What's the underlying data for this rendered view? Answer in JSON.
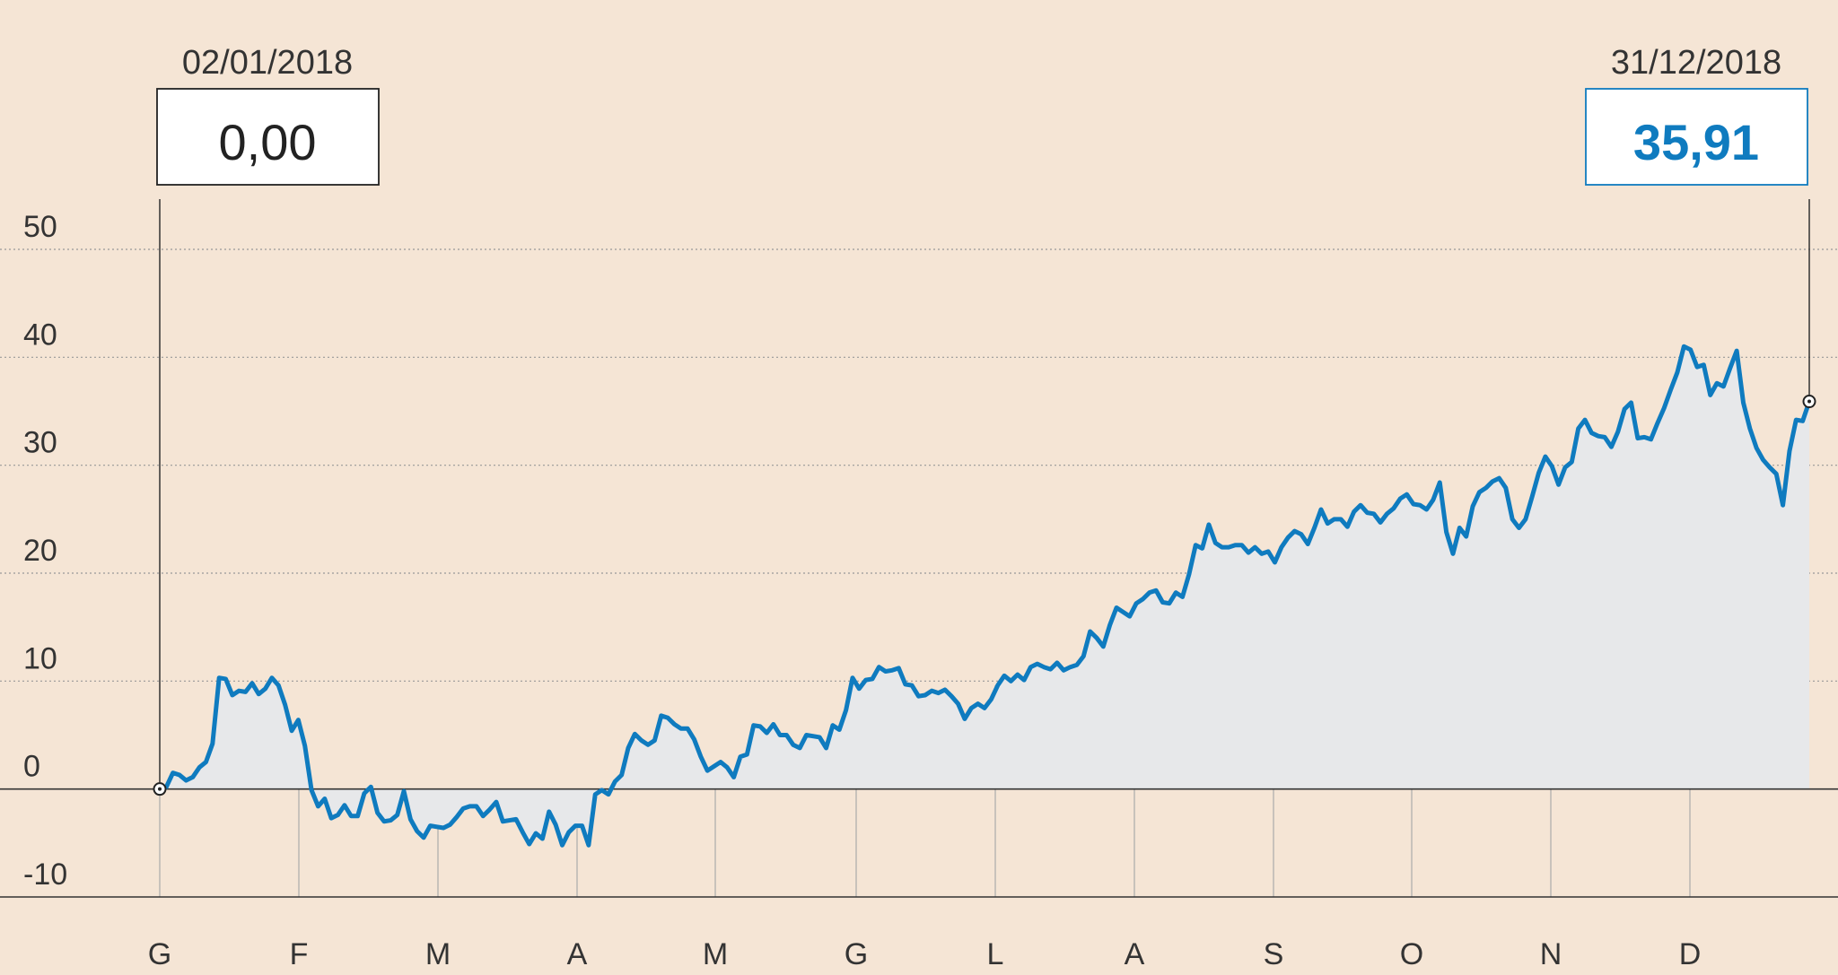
{
  "chart_data": {
    "type": "area",
    "x_labels": [
      "G",
      "F",
      "M",
      "A",
      "M",
      "G",
      "L",
      "A",
      "S",
      "O",
      "N",
      "D"
    ],
    "yticks": [
      50,
      40,
      30,
      20,
      10,
      0,
      -10
    ],
    "ylim": [
      -10,
      50
    ],
    "grid": true,
    "series": [
      {
        "values": [
          0.0,
          0.2,
          1.5,
          1.3,
          0.8,
          1.1,
          2.0,
          2.5,
          4.2,
          10.3,
          10.2,
          8.7,
          9.1,
          9.0,
          9.8,
          8.8,
          9.3,
          10.3,
          9.6,
          7.8,
          5.4,
          6.4,
          4.0,
          -0.1,
          -1.6,
          -0.9,
          -2.7,
          -2.4,
          -1.5,
          -2.5,
          -2.5,
          -0.4,
          0.2,
          -2.2,
          -3.0,
          -2.9,
          -2.4,
          -0.2,
          -2.8,
          -3.9,
          -4.5,
          -3.4,
          -3.5,
          -3.6,
          -3.3,
          -2.6,
          -1.8,
          -1.6,
          -1.6,
          -2.5,
          -1.9,
          -1.2,
          -3.0,
          -2.9,
          -2.8,
          -4.0,
          -5.1,
          -4.1,
          -4.6,
          -2.1,
          -3.3,
          -5.2,
          -4.0,
          -3.4,
          -3.4,
          -5.2,
          -0.5,
          -0.1,
          -0.5,
          0.7,
          1.3,
          3.8,
          5.1,
          4.5,
          4.1,
          4.5,
          6.8,
          6.6,
          6.0,
          5.6,
          5.6,
          4.6,
          3.0,
          1.7,
          2.1,
          2.5,
          2.0,
          1.1,
          3.0,
          3.2,
          5.9,
          5.8,
          5.2,
          6.0,
          5.0,
          5.0,
          4.1,
          3.8,
          5.0,
          4.9,
          4.8,
          3.8,
          5.9,
          5.5,
          7.3,
          10.3,
          9.3,
          10.1,
          10.2,
          11.3,
          10.9,
          11.0,
          11.2,
          9.7,
          9.6,
          8.6,
          8.7,
          9.1,
          8.9,
          9.2,
          8.6,
          7.9,
          6.5,
          7.5,
          7.9,
          7.5,
          8.3,
          9.6,
          10.5,
          10.0,
          10.6,
          10.1,
          11.3,
          11.6,
          11.3,
          11.1,
          11.7,
          11.0,
          11.3,
          11.5,
          12.3,
          14.6,
          14.0,
          13.2,
          15.2,
          16.8,
          16.4,
          16.0,
          17.2,
          17.6,
          18.2,
          18.4,
          17.3,
          17.2,
          18.2,
          17.8,
          19.9,
          22.6,
          22.3,
          24.5,
          22.8,
          22.4,
          22.4,
          22.6,
          22.6,
          21.9,
          22.4,
          21.8,
          22.0,
          21.0,
          22.4,
          23.3,
          23.9,
          23.6,
          22.7,
          24.2,
          25.9,
          24.6,
          25.0,
          25.0,
          24.3,
          25.7,
          26.3,
          25.6,
          25.5,
          24.7,
          25.5,
          26.0,
          26.9,
          27.3,
          26.4,
          26.3,
          25.9,
          26.8,
          28.4,
          23.8,
          21.8,
          24.2,
          23.4,
          26.2,
          27.5,
          27.9,
          28.5,
          28.8,
          27.9,
          25.0,
          24.2,
          25.0,
          27.1,
          29.3,
          30.8,
          29.9,
          28.2,
          29.8,
          30.3,
          33.4,
          34.2,
          33.0,
          32.7,
          32.6,
          31.7,
          33.1,
          35.2,
          35.8,
          32.5,
          32.6,
          32.4,
          33.9,
          35.3,
          37.0,
          38.6,
          41.0,
          40.7,
          39.1,
          39.3,
          36.5,
          37.6,
          37.3,
          39.0,
          40.6,
          35.8,
          33.4,
          31.6,
          30.5,
          29.8,
          29.2,
          26.3,
          31.3,
          34.2,
          34.1,
          35.91
        ]
      }
    ]
  },
  "start": {
    "date": "02/01/2018",
    "value": "0,00"
  },
  "end": {
    "date": "31/12/2018",
    "value": "35,91"
  },
  "colors": {
    "background": "#f5e5d5",
    "line": "#0f7bbf",
    "area": "#e7e8ea",
    "grid": "#999999",
    "axis": "#333333",
    "end_value": "#0f7bbf"
  }
}
